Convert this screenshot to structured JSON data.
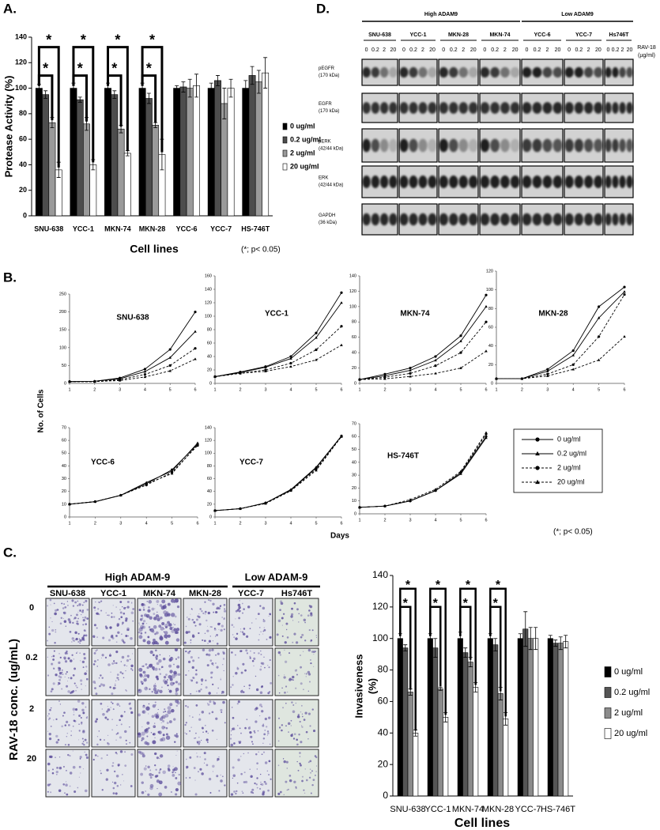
{
  "panel_labels": [
    "A.",
    "B.",
    "C.",
    "D."
  ],
  "growth": {
    "y_label": "No. of Cells",
    "x_label": "Days",
    "note": "(*; p< 0.05)",
    "color": "#000000",
    "legend": [
      {
        "name": "0 ug/ml",
        "marker": "circle",
        "dash": false
      },
      {
        "name": "0.2 ug/ml",
        "marker": "triangle",
        "dash": false
      },
      {
        "name": "2 ug/ml",
        "marker": "circle",
        "dash": true
      },
      {
        "name": "20 ug/ml",
        "marker": "triangle",
        "dash": true
      }
    ]
  },
  "blot": {
    "groups": [
      "High ADAM9",
      "Low ADAM9"
    ],
    "lines": [
      "SNU-638",
      "YCC-1",
      "MKN-28",
      "MKN-74",
      "YCC-6",
      "YCC-7",
      "Hs746T"
    ],
    "doses": [
      "0",
      "0.2",
      "2",
      "20"
    ],
    "dose_label": [
      "RAV-18",
      "(µg/ml)"
    ],
    "rows": [
      {
        "label": "pEGFR",
        "size": "(170 kDa)"
      },
      {
        "label": "EGFR",
        "size": "(170 kDa)"
      },
      {
        "label": "pERK",
        "size": "(42/44 kDa)"
      },
      {
        "label": "ERK",
        "size": "(42/44 kDa)"
      },
      {
        "label": "GAPDH",
        "size": "(36 kDa)"
      }
    ]
  },
  "invasion": {
    "groups": [
      "High ADAM-9",
      "Low ADAM-9"
    ],
    "lines": [
      "SNU-638",
      "YCC-1",
      "MKN-74",
      "MKN-28",
      "YCC-7",
      "Hs746T"
    ],
    "doses": [
      "0",
      "0.2",
      "2",
      "20"
    ],
    "y_label": "RAV-18 conc. (ug/mL)"
  },
  "chart_data": [
    {
      "type": "bar",
      "y_label": "Protease Activity (%)",
      "x_label": "Cell lines",
      "note": "(*; p< 0.05)",
      "categories": [
        "SNU-638",
        "YCC-1",
        "MKN-74",
        "MKN-28",
        "YCC-6",
        "YCC-7",
        "HS-746T"
      ],
      "ylim": [
        0,
        140
      ],
      "yticks": [
        0,
        20,
        40,
        60,
        80,
        100,
        120,
        140
      ],
      "series": [
        {
          "name": "0 ug/ml",
          "color": "#000000",
          "values": [
            100,
            100,
            100,
            100,
            100,
            100,
            100
          ],
          "errors": [
            3,
            4,
            4,
            4,
            2,
            4,
            6
          ]
        },
        {
          "name": "0.2 ug/ml",
          "color": "#4d4d4d",
          "values": [
            95,
            91,
            95,
            92,
            101,
            106,
            110
          ],
          "errors": [
            3,
            2,
            3,
            4,
            4,
            4,
            7
          ]
        },
        {
          "name": "2 ug/ml",
          "color": "#9a9a9a",
          "values": [
            73,
            72,
            68,
            71,
            100,
            88,
            105
          ],
          "errors": [
            4,
            5,
            3,
            2,
            7,
            12,
            9
          ]
        },
        {
          "name": "20 ug/ml",
          "color": "#ffffff",
          "values": [
            36,
            40,
            49,
            48,
            102,
            100,
            112
          ],
          "errors": [
            6,
            4,
            2,
            12,
            9,
            7,
            12
          ]
        }
      ],
      "significance": [
        {
          "text": "*",
          "category": "SNU-638",
          "versus": "2 ug/ml"
        },
        {
          "text": "*",
          "category": "SNU-638",
          "versus": "20 ug/ml"
        },
        {
          "text": "*",
          "category": "YCC-1",
          "versus": "2 ug/ml"
        },
        {
          "text": "*",
          "category": "YCC-1",
          "versus": "20 ug/ml"
        },
        {
          "text": "*",
          "category": "MKN-74",
          "versus": "2 ug/ml"
        },
        {
          "text": "*",
          "category": "MKN-74",
          "versus": "20 ug/ml"
        },
        {
          "text": "*",
          "category": "MKN-28",
          "versus": "2 ug/ml"
        },
        {
          "text": "*",
          "category": "MKN-28",
          "versus": "20 ug/ml"
        }
      ]
    },
    {
      "type": "line",
      "title": "SNU-638",
      "x": [
        1,
        2,
        3,
        4,
        5,
        6
      ],
      "xlim": [
        1,
        6
      ],
      "xticks": [
        1,
        2,
        3,
        4,
        5,
        6
      ],
      "ylim": [
        0,
        250
      ],
      "yticks": [
        0,
        50,
        100,
        150,
        200,
        250
      ],
      "series": [
        {
          "values": [
            5,
            6,
            15,
            40,
            95,
            200
          ]
        },
        {
          "values": [
            5,
            6,
            13,
            33,
            72,
            145
          ]
        },
        {
          "values": [
            5,
            5,
            10,
            25,
            50,
            98
          ]
        },
        {
          "values": [
            5,
            5,
            8,
            18,
            35,
            68
          ]
        }
      ]
    },
    {
      "type": "line",
      "title": "YCC-1",
      "x": [
        1,
        2,
        3,
        4,
        5,
        6
      ],
      "xlim": [
        1,
        6
      ],
      "xticks": [
        1,
        2,
        3,
        4,
        5,
        6
      ],
      "ylim": [
        0,
        160
      ],
      "yticks": [
        0,
        20,
        40,
        60,
        80,
        100,
        120,
        140,
        160
      ],
      "series": [
        {
          "values": [
            10,
            17,
            25,
            40,
            75,
            135
          ]
        },
        {
          "values": [
            10,
            16,
            24,
            37,
            68,
            120
          ]
        },
        {
          "values": [
            10,
            15,
            20,
            30,
            50,
            85
          ]
        },
        {
          "values": [
            10,
            15,
            18,
            25,
            35,
            57
          ]
        }
      ]
    },
    {
      "type": "line",
      "title": "MKN-74",
      "x": [
        1,
        2,
        3,
        4,
        5,
        6
      ],
      "xlim": [
        1,
        6
      ],
      "xticks": [
        1,
        2,
        3,
        4,
        5,
        6
      ],
      "ylim": [
        0,
        140
      ],
      "yticks": [
        0,
        20,
        40,
        60,
        80,
        100,
        120,
        140
      ],
      "series": [
        {
          "values": [
            5,
            12,
            20,
            35,
            62,
            115
          ]
        },
        {
          "values": [
            5,
            10,
            17,
            30,
            55,
            100
          ]
        },
        {
          "values": [
            5,
            8,
            13,
            23,
            40,
            80
          ]
        },
        {
          "values": [
            5,
            6,
            9,
            13,
            20,
            42
          ]
        }
      ]
    },
    {
      "type": "line",
      "title": "MKN-28",
      "x": [
        1,
        2,
        3,
        4,
        5,
        6
      ],
      "xlim": [
        1,
        6
      ],
      "xticks": [
        1,
        2,
        3,
        4,
        5,
        6
      ],
      "ylim": [
        0,
        120
      ],
      "yticks": [
        0,
        20,
        40,
        60,
        80,
        100,
        120
      ],
      "series": [
        {
          "values": [
            5,
            5,
            15,
            35,
            82,
            103
          ]
        },
        {
          "values": [
            5,
            5,
            13,
            30,
            70,
            98
          ]
        },
        {
          "values": [
            5,
            5,
            10,
            20,
            50,
            95
          ]
        },
        {
          "values": [
            5,
            5,
            8,
            15,
            25,
            50
          ]
        }
      ]
    },
    {
      "type": "line",
      "title": "YCC-6",
      "x": [
        1,
        2,
        3,
        4,
        5,
        6
      ],
      "xlim": [
        1,
        6
      ],
      "xticks": [
        1,
        2,
        3,
        4,
        5,
        6
      ],
      "ylim": [
        0,
        70
      ],
      "yticks": [
        0,
        10,
        20,
        30,
        40,
        50,
        60,
        70
      ],
      "series": [
        {
          "values": [
            10,
            12,
            17,
            26,
            37,
            57
          ]
        },
        {
          "values": [
            10,
            12,
            17,
            27,
            36,
            58
          ]
        },
        {
          "values": [
            10,
            12,
            17,
            25,
            35,
            56
          ]
        },
        {
          "values": [
            10,
            12,
            17,
            26,
            34,
            57
          ]
        }
      ]
    },
    {
      "type": "line",
      "title": "YCC-7",
      "x": [
        1,
        2,
        3,
        4,
        5,
        6
      ],
      "xlim": [
        1,
        6
      ],
      "xticks": [
        1,
        2,
        3,
        4,
        5,
        6
      ],
      "ylim": [
        0,
        140
      ],
      "yticks": [
        0,
        20,
        40,
        60,
        80,
        100,
        120,
        140
      ],
      "series": [
        {
          "values": [
            10,
            13,
            22,
            42,
            77,
            127
          ]
        },
        {
          "values": [
            10,
            13,
            22,
            43,
            78,
            127
          ]
        },
        {
          "values": [
            10,
            13,
            22,
            42,
            75,
            126
          ]
        },
        {
          "values": [
            10,
            13,
            21,
            41,
            73,
            126
          ]
        }
      ]
    },
    {
      "type": "line",
      "title": "HS-746T",
      "x": [
        1,
        2,
        3,
        4,
        5,
        6
      ],
      "xlim": [
        1,
        6
      ],
      "xticks": [
        1,
        2,
        3,
        4,
        5,
        6
      ],
      "ylim": [
        0,
        70
      ],
      "yticks": [
        0,
        10,
        20,
        30,
        40,
        50,
        60,
        70
      ],
      "series": [
        {
          "values": [
            5,
            6,
            10,
            18,
            32,
            60
          ]
        },
        {
          "values": [
            5,
            6,
            10,
            18,
            31,
            59
          ]
        },
        {
          "values": [
            5,
            6,
            10,
            18,
            32,
            62
          ]
        },
        {
          "values": [
            5,
            6,
            11,
            19,
            33,
            63
          ]
        }
      ]
    },
    {
      "type": "bar",
      "y_label": [
        "Invasiveness",
        "(%)"
      ],
      "x_label": "Cell lines",
      "categories": [
        "SNU-638",
        "YCC-1",
        "MKN-74",
        "MKN-28",
        "YCC-7",
        "HS-746T"
      ],
      "ylim": [
        0,
        140
      ],
      "yticks": [
        0,
        20,
        40,
        60,
        80,
        100,
        120,
        140
      ],
      "series": [
        {
          "name": "0 ug/ml",
          "color": "#000000",
          "values": [
            100,
            100,
            100,
            100,
            100,
            100
          ],
          "errors": [
            3,
            3,
            4,
            3,
            3,
            2
          ]
        },
        {
          "name": "0.2 ug/ml",
          "color": "#555555",
          "values": [
            94,
            94,
            91,
            96,
            106,
            97
          ],
          "errors": [
            2,
            6,
            3,
            4,
            11,
            2
          ]
        },
        {
          "name": "2 ug/ml",
          "color": "#8c8c8c",
          "values": [
            66,
            68,
            85,
            65,
            100,
            97
          ],
          "errors": [
            2,
            1,
            3,
            4,
            7,
            4
          ]
        },
        {
          "name": "20 ug/ml",
          "color": "#ffffff",
          "values": [
            40,
            50,
            69,
            49,
            100,
            98
          ],
          "errors": [
            2,
            3,
            3,
            4,
            7,
            4
          ]
        }
      ],
      "significance": [
        {
          "text": "*",
          "category": "SNU-638",
          "versus": "2 ug/ml"
        },
        {
          "text": "*",
          "category": "SNU-638",
          "versus": "20 ug/ml"
        },
        {
          "text": "*",
          "category": "YCC-1",
          "versus": "2 ug/ml"
        },
        {
          "text": "*",
          "category": "YCC-1",
          "versus": "20 ug/ml"
        },
        {
          "text": "*",
          "category": "MKN-74",
          "versus": "2 ug/ml"
        },
        {
          "text": "*",
          "category": "MKN-74",
          "versus": "20 ug/ml"
        },
        {
          "text": "*",
          "category": "MKN-28",
          "versus": "2 ug/ml"
        },
        {
          "text": "*",
          "category": "MKN-28",
          "versus": "20 ug/ml"
        }
      ]
    }
  ]
}
